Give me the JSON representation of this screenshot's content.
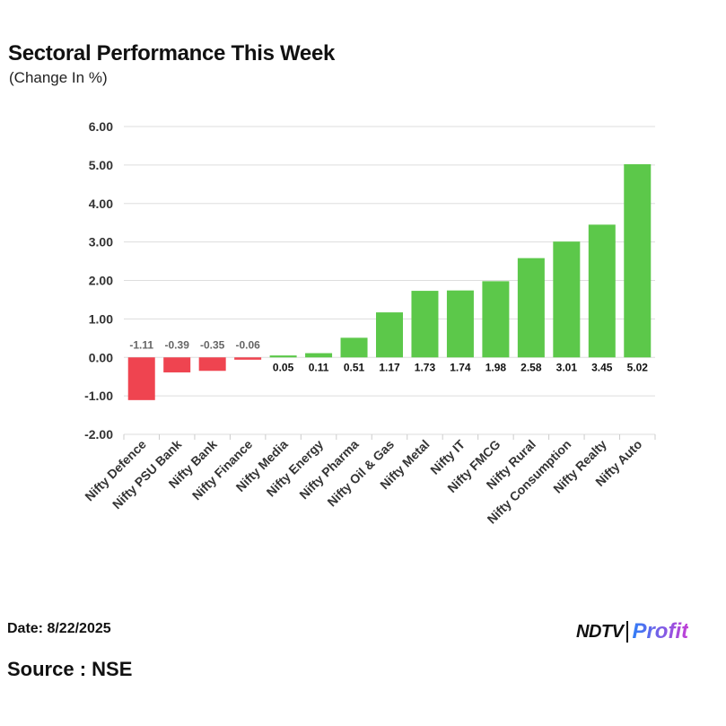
{
  "header": {
    "title": "Sectoral Performance This Week",
    "subtitle": "(Change In %)"
  },
  "footer": {
    "date": "Date: 8/22/2025",
    "source": "Source : NSE",
    "logo_left": "NDTV",
    "logo_right": "Profit"
  },
  "colors": {
    "positive": "#5cc84a",
    "negative": "#ef4450",
    "grid": "#dddddd",
    "axis_text": "#333333"
  },
  "chart_data": {
    "type": "bar",
    "title": "Sectoral Performance This Week",
    "subtitle": "(Change In %)",
    "xlabel": "",
    "ylabel": "",
    "ylim": [
      -2.0,
      6.0
    ],
    "yticks": [
      6.0,
      5.0,
      4.0,
      3.0,
      2.0,
      1.0,
      0.0,
      -1.0,
      -2.0
    ],
    "ytick_labels": [
      "6.00",
      "5.00",
      "4.00",
      "3.00",
      "2.00",
      "1.00",
      "0.00",
      "-1.00",
      "-2.00"
    ],
    "grid": true,
    "categories": [
      "Nifty Defence",
      "Nifty PSU Bank",
      "Nifty Bank",
      "Nifty Finance",
      "Nifty Media",
      "Nifty Energy",
      "Nifty Pharma",
      "Nifty Oil & Gas",
      "Nifty Metal",
      "Nifty IT",
      "Nifty FMCG",
      "Nifty Rural",
      "Nifty Consumption",
      "Nifty Realty",
      "Nifty Auto"
    ],
    "values": [
      -1.11,
      -0.39,
      -0.35,
      -0.06,
      0.05,
      0.11,
      0.51,
      1.17,
      1.73,
      1.74,
      1.98,
      2.58,
      3.01,
      3.45,
      5.02
    ],
    "labels": [
      "-1.11",
      "-0.39",
      "-0.35",
      "-0.06",
      "0.05",
      "0.11",
      "0.51",
      "1.17",
      "1.73",
      "1.74",
      "1.98",
      "2.58",
      "3.01",
      "3.45",
      "5.02"
    ]
  }
}
